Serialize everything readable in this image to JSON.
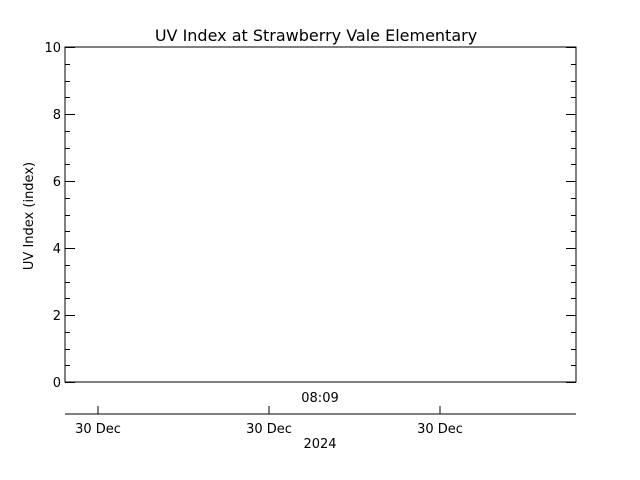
{
  "chart_data": {
    "type": "line",
    "title": "UV Index at Strawberry Vale Elementary",
    "ylabel": "UV Index (index)",
    "ylim": [
      0,
      10
    ],
    "yticks": [
      "0",
      "2",
      "4",
      "6",
      "8",
      "10"
    ],
    "series": [],
    "x_time_label": "08:09",
    "x_date_ticks": [
      "30 Dec",
      "30 Dec",
      "30 Dec"
    ],
    "x_year_label": "2024",
    "grid": false,
    "legend": "none"
  }
}
